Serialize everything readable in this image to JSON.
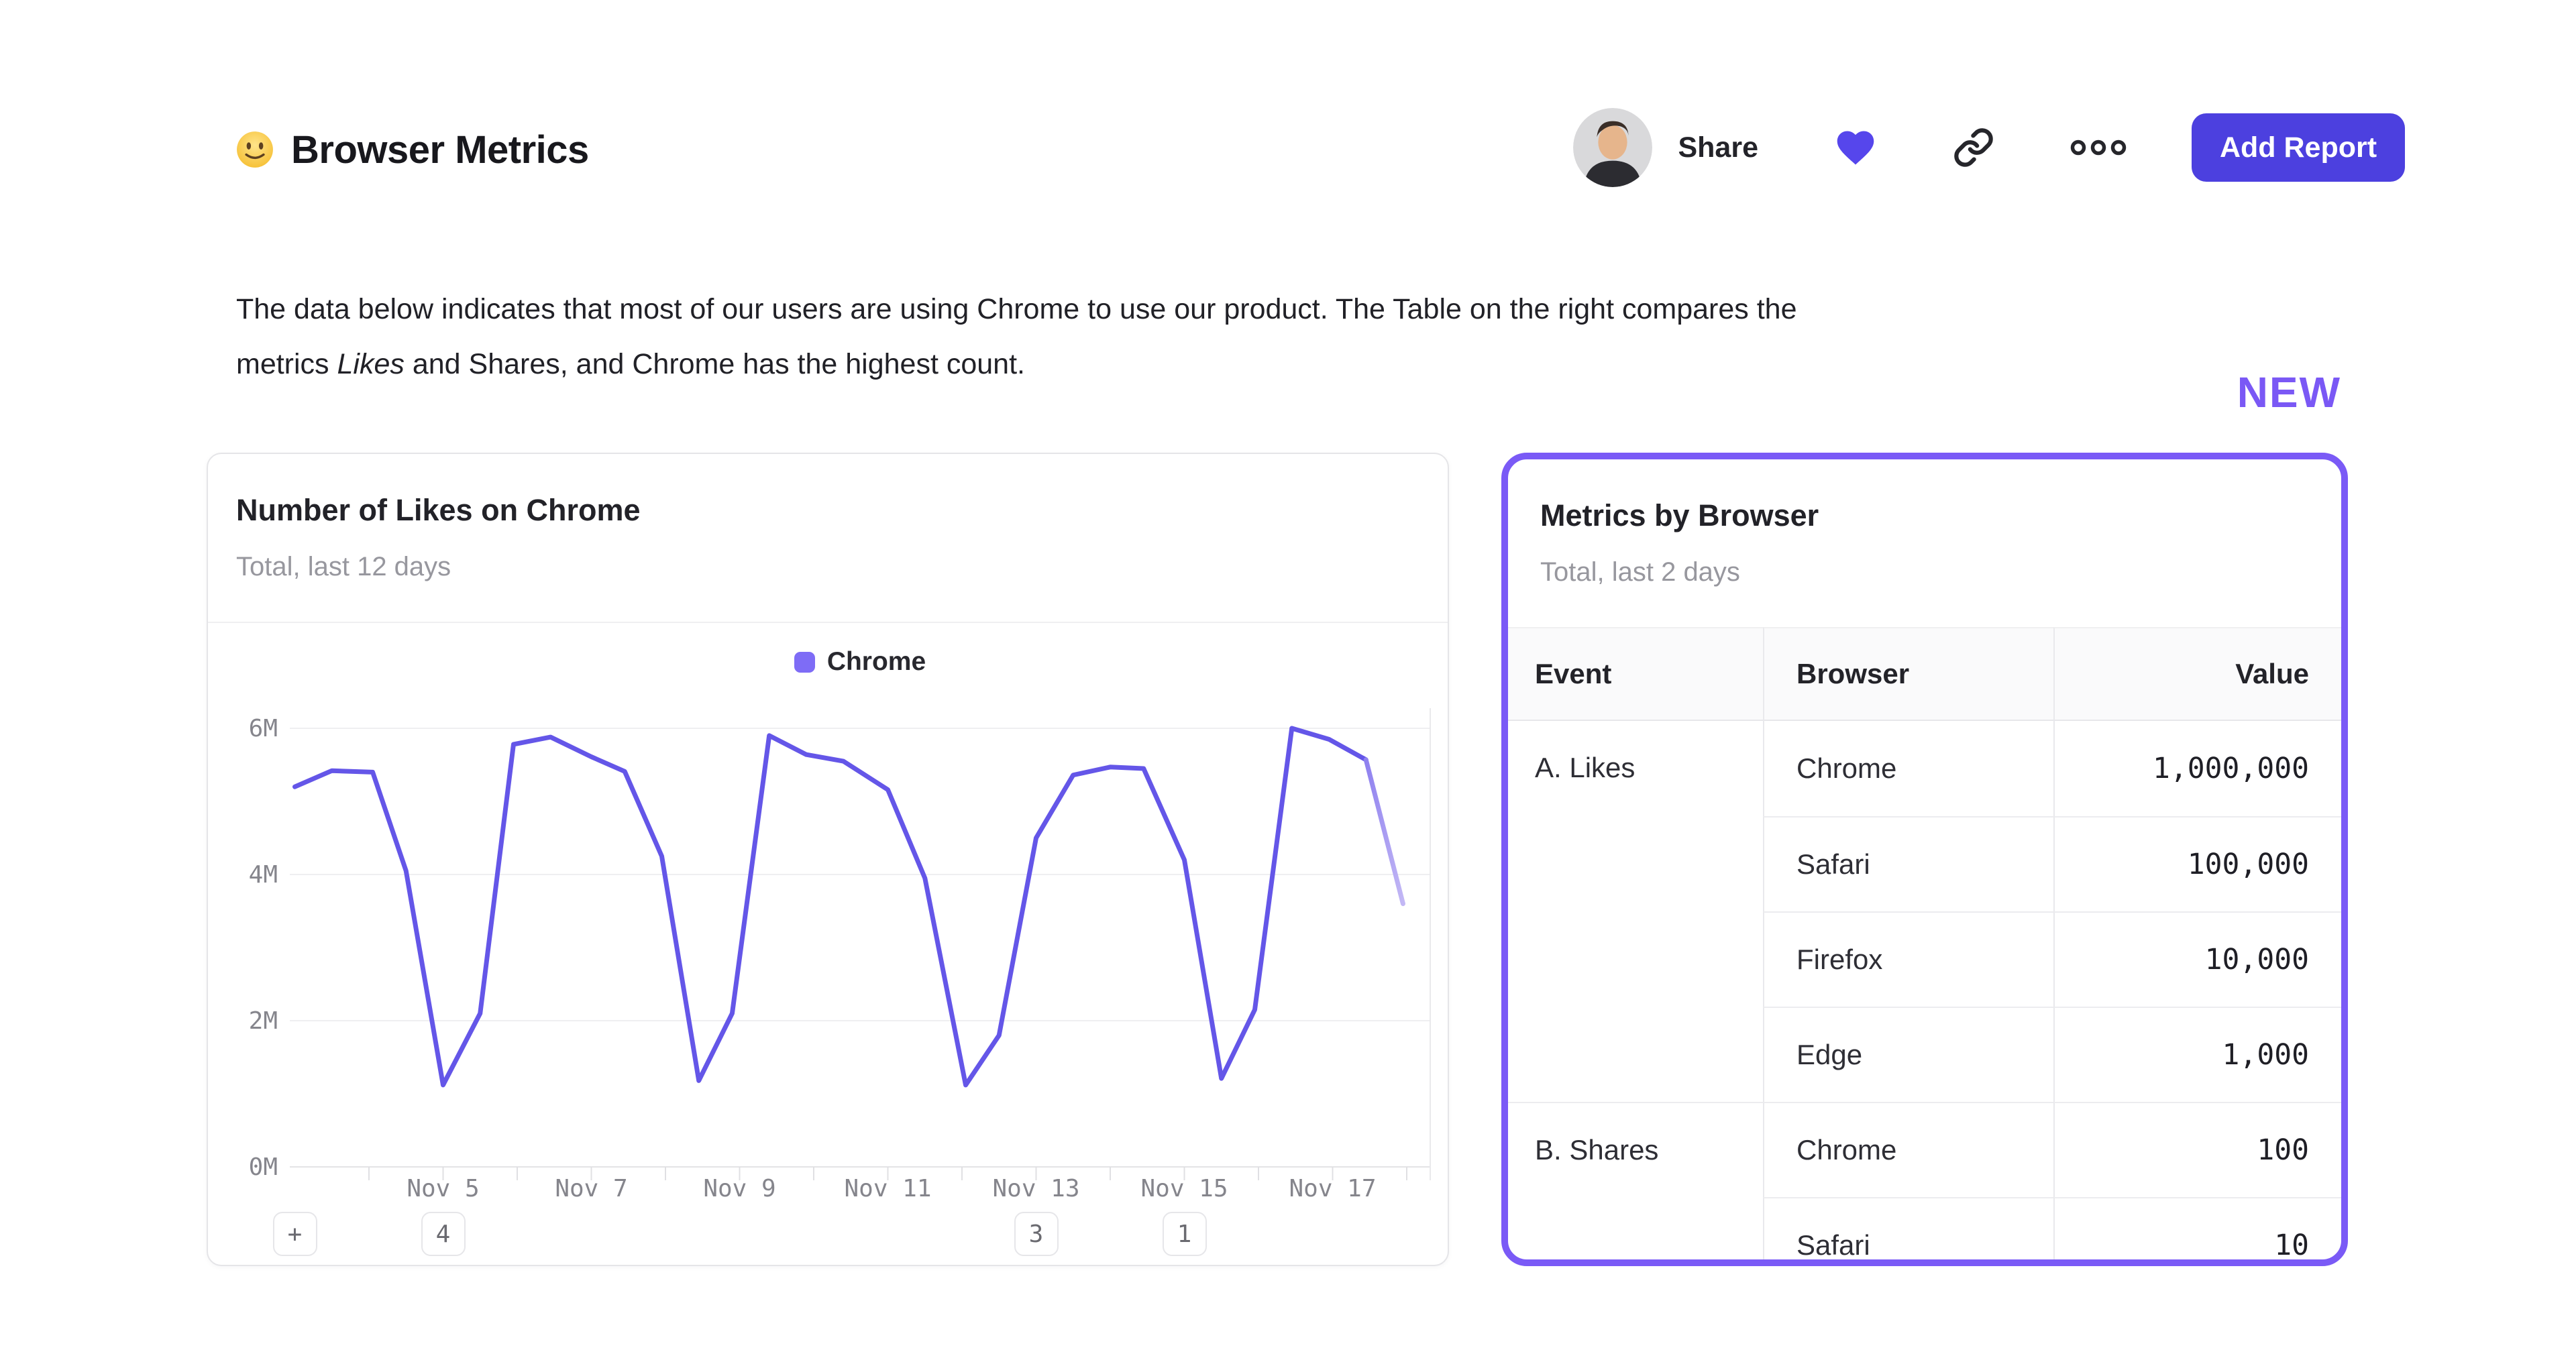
{
  "header": {
    "emoji": "slightly-smiling-face",
    "title": "Browser Metrics",
    "share_label": "Share",
    "add_report_label": "Add Report"
  },
  "description": {
    "line1": "The data below indicates that most of our users are using Chrome to use our product. The Table on the right compares the",
    "line2_pre": "metrics ",
    "line2_italic": "Likes",
    "line2_post": " and Shares, and Chrome has the highest count."
  },
  "new_badge": "NEW",
  "colors": {
    "accent_button": "#4c40df",
    "heart": "#5646ec",
    "line": "#6456e8",
    "line_faded_tail": "#c3b8f5",
    "legend_swatch": "#7e6cf6",
    "table_card_border": "#7a5af6",
    "new_label": "#7a58f5",
    "grid_line": "#efeff1",
    "axis_line": "#e3e3e6"
  },
  "chart_card": {
    "title": "Number of Likes on Chrome",
    "subtitle": "Total, last 12 days"
  },
  "chart_data": {
    "type": "line",
    "title": "Number of Likes on Chrome",
    "subtitle": "Total, last 12 days",
    "unit": "millions",
    "month": "Nov",
    "legend": [
      {
        "label": "Chrome",
        "color": "#7e6cf6"
      }
    ],
    "ylim": [
      0,
      6
    ],
    "y_ticks": [
      {
        "label": "0M",
        "value": 0
      },
      {
        "label": "2M",
        "value": 2
      },
      {
        "label": "4M",
        "value": 4
      },
      {
        "label": "6M",
        "value": 6
      }
    ],
    "x_tick_days": [
      4,
      5,
      6,
      7,
      8,
      9,
      10,
      11,
      12,
      13,
      14,
      15,
      16,
      17,
      18
    ],
    "x_labels": [
      {
        "day": 5,
        "label": "Nov 5"
      },
      {
        "day": 7,
        "label": "Nov 7"
      },
      {
        "day": 9,
        "label": "Nov 9"
      },
      {
        "day": 11,
        "label": "Nov 11"
      },
      {
        "day": 13,
        "label": "Nov 13"
      },
      {
        "day": 15,
        "label": "Nov 15"
      },
      {
        "day": 17,
        "label": "Nov 17"
      }
    ],
    "series": [
      {
        "name": "Chrome",
        "color": "#6456e8",
        "faded_from_day": 17.45,
        "points_day_valueM": [
          [
            3.0,
            5.2
          ],
          [
            3.5,
            5.42
          ],
          [
            4.05,
            5.4
          ],
          [
            4.5,
            4.05
          ],
          [
            5.0,
            1.12
          ],
          [
            5.5,
            2.1
          ],
          [
            5.95,
            5.78
          ],
          [
            6.45,
            5.88
          ],
          [
            7.0,
            5.61
          ],
          [
            7.45,
            5.41
          ],
          [
            7.95,
            4.25
          ],
          [
            8.45,
            1.18
          ],
          [
            8.9,
            2.1
          ],
          [
            9.4,
            5.9
          ],
          [
            9.9,
            5.64
          ],
          [
            10.4,
            5.55
          ],
          [
            11.0,
            5.16
          ],
          [
            11.5,
            3.95
          ],
          [
            12.05,
            1.12
          ],
          [
            12.5,
            1.8
          ],
          [
            13.0,
            4.5
          ],
          [
            13.5,
            5.36
          ],
          [
            14.0,
            5.47
          ],
          [
            14.45,
            5.45
          ],
          [
            15.0,
            4.2
          ],
          [
            15.5,
            1.21
          ],
          [
            15.95,
            2.15
          ],
          [
            16.45,
            6.0
          ],
          [
            16.95,
            5.85
          ],
          [
            17.45,
            5.57
          ],
          [
            17.95,
            3.6
          ]
        ]
      }
    ],
    "annotations": [
      {
        "label": "+",
        "x_day": 3.0
      },
      {
        "label": "4",
        "x_day": 5
      },
      {
        "label": "3",
        "x_day": 13
      },
      {
        "label": "1",
        "x_day": 15
      }
    ]
  },
  "table_card": {
    "title": "Metrics by Browser",
    "subtitle": "Total, last 2 days",
    "columns": [
      "Event",
      "Browser",
      "Value"
    ],
    "groups": [
      {
        "event": "A. Likes",
        "rows": [
          {
            "browser": "Chrome",
            "value": "1,000,000"
          },
          {
            "browser": "Safari",
            "value": "100,000"
          },
          {
            "browser": "Firefox",
            "value": "10,000"
          },
          {
            "browser": "Edge",
            "value": "1,000"
          }
        ]
      },
      {
        "event": "B. Shares",
        "rows": [
          {
            "browser": "Chrome",
            "value": "100"
          },
          {
            "browser": "Safari",
            "value": "10"
          }
        ]
      }
    ]
  }
}
